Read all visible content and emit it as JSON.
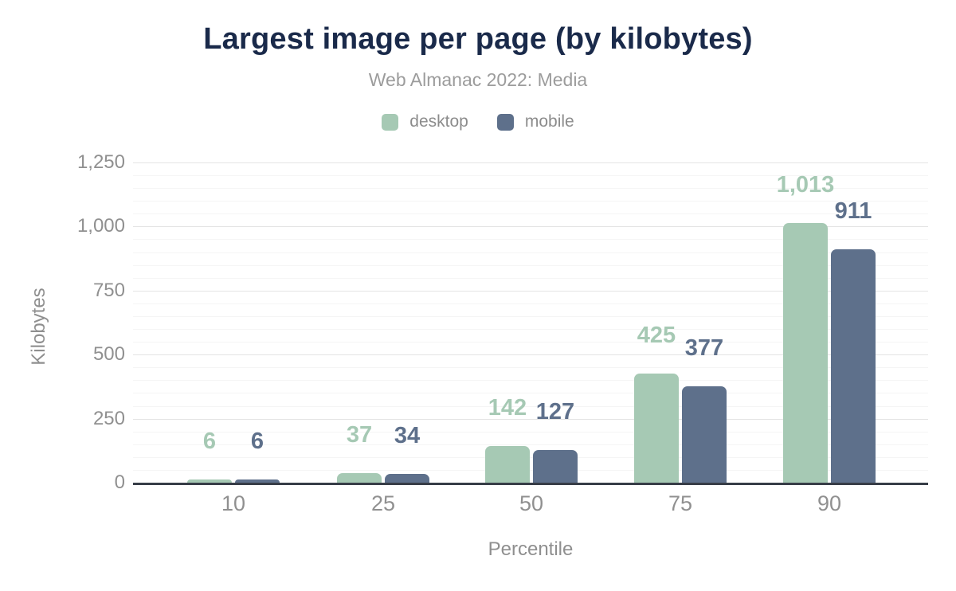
{
  "chart_data": {
    "type": "bar",
    "title": "Largest image per page (by kilobytes)",
    "subtitle": "Web Almanac 2022: Media",
    "xlabel": "Percentile",
    "ylabel": "Kilobytes",
    "categories": [
      "10",
      "25",
      "50",
      "75",
      "90"
    ],
    "series": [
      {
        "name": "desktop",
        "color": "#a6c9b4",
        "values": [
          6,
          37,
          142,
          425,
          1013
        ],
        "value_labels": [
          "6",
          "37",
          "142",
          "425",
          "1,013"
        ]
      },
      {
        "name": "mobile",
        "color": "#5e708b",
        "values": [
          6,
          34,
          127,
          377,
          911
        ],
        "value_labels": [
          "6",
          "34",
          "127",
          "377",
          "911"
        ]
      }
    ],
    "ylim": [
      0,
      1250
    ],
    "y_major_step": 250,
    "y_minor_step": 50,
    "y_tick_labels": [
      "0",
      "250",
      "500",
      "750",
      "1,000",
      "1,250"
    ],
    "grid": "horizontal-only",
    "legend_position": "top"
  },
  "colors": {
    "background": "#ffffff",
    "title": "#1a2a4a",
    "subtitle": "#9c9c9c",
    "legend_text": "#8c8c8c",
    "tick_text": "#909090",
    "axis_title_text": "#8f8f8f",
    "grid_major": "#e4e4e4",
    "grid_minor": "#f5f5f5",
    "axis_line": "#373d47"
  }
}
